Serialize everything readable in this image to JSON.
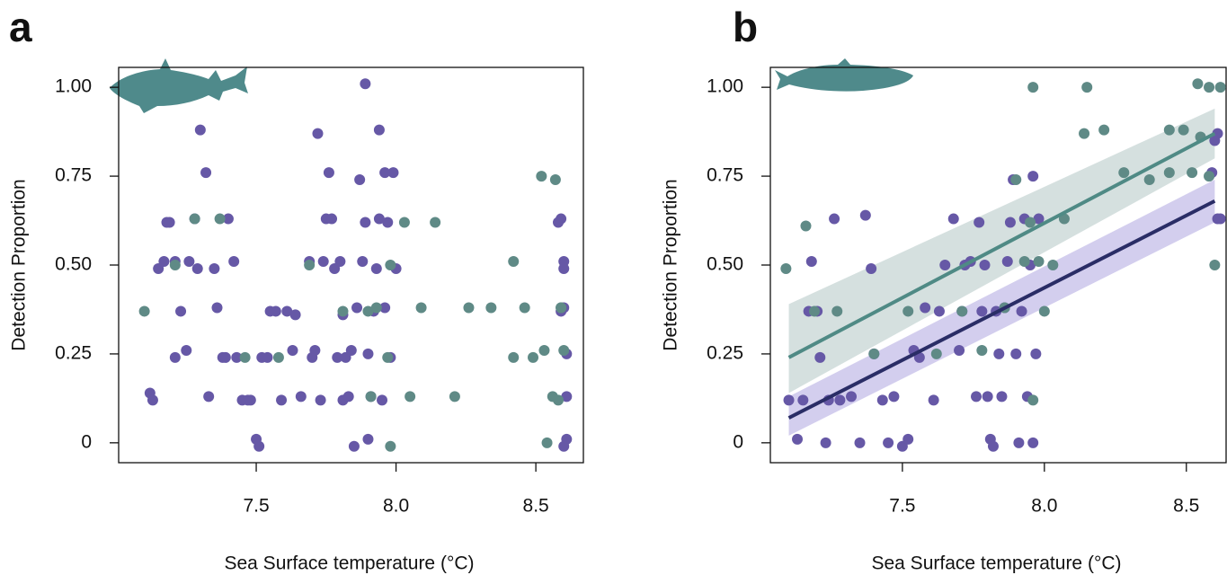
{
  "chart_data": [
    {
      "type": "scatter",
      "title": "a",
      "x_label": "Sea Surface temperature (°C)",
      "y_label": "Detection Proportion",
      "xlim": [
        7.008,
        8.67
      ],
      "ylim": [
        -0.056,
        1.056
      ],
      "xticks": [
        7.5,
        {
          "value": 8,
          "label": "8.0"
        },
        8.5
      ],
      "yticks": [
        0,
        0.25,
        {
          "value": 0.5,
          "label": "0.50"
        },
        0.75,
        {
          "value": 1,
          "label": "1.00"
        }
      ],
      "series": [
        {
          "color": "#6658a6",
          "x": [
            7.12,
            7.13,
            7.15,
            7.17,
            7.18,
            7.19,
            7.21,
            7.21,
            7.23,
            7.25,
            7.26,
            7.28,
            7.29,
            7.3,
            7.32,
            7.33,
            7.35,
            7.36,
            7.38,
            7.39,
            7.4,
            7.42,
            7.43,
            7.45,
            7.47,
            7.48,
            7.5,
            7.51,
            7.52,
            7.54,
            7.55,
            7.57,
            7.59,
            7.61,
            7.63,
            7.64,
            7.66,
            7.69,
            7.7,
            7.71,
            7.72,
            7.73,
            7.74,
            7.75,
            7.76,
            7.77,
            7.78,
            7.79,
            7.8,
            7.81,
            7.81,
            7.82,
            7.83,
            7.84,
            7.85,
            7.86,
            7.87,
            7.88,
            7.89,
            7.89,
            7.9,
            7.9,
            7.91,
            7.92,
            7.93,
            7.94,
            7.94,
            7.95,
            7.96,
            7.96,
            7.97,
            7.98,
            7.99,
            8.0,
            8.59,
            8.6,
            8.6,
            8.61,
            8.61,
            8.61,
            8.6,
            8.58,
            8.6,
            8.59
          ],
          "values": [
            0.14,
            0.12,
            0.49,
            0.51,
            0.62,
            0.62,
            0.24,
            0.51,
            0.37,
            0.26,
            0.51,
            0.63,
            0.49,
            0.88,
            0.76,
            0.13,
            0.49,
            0.38,
            0.24,
            0.24,
            0.63,
            0.51,
            0.24,
            0.12,
            0.12,
            0.12,
            0.01,
            -0.01,
            0.24,
            0.24,
            0.37,
            0.37,
            0.12,
            0.37,
            0.26,
            0.36,
            0.13,
            0.51,
            0.24,
            0.26,
            0.87,
            0.12,
            0.51,
            0.63,
            0.76,
            0.63,
            0.49,
            0.24,
            0.51,
            0.12,
            0.36,
            0.24,
            0.13,
            0.26,
            -0.01,
            0.38,
            0.74,
            0.51,
            0.62,
            1.01,
            0.01,
            0.25,
            0.13,
            0.37,
            0.49,
            0.63,
            0.88,
            0.12,
            0.76,
            0.38,
            0.62,
            0.24,
            0.76,
            0.49,
            0.63,
            0.51,
            0.38,
            0.25,
            0.13,
            0.01,
            -0.01,
            0.62,
            0.49,
            0.37
          ]
        },
        {
          "color": "#5f8a86",
          "x": [
            7.1,
            7.21,
            7.28,
            7.37,
            7.46,
            7.58,
            7.69,
            7.81,
            7.9,
            7.91,
            7.93,
            7.97,
            7.98,
            7.98,
            8.03,
            8.05,
            8.09,
            8.14,
            8.21,
            8.26,
            8.34,
            8.42,
            8.42,
            8.46,
            8.49,
            8.52,
            8.53,
            8.54,
            8.57,
            8.56,
            8.58,
            8.59,
            8.6,
            8.59
          ],
          "values": [
            0.37,
            0.5,
            0.63,
            0.63,
            0.24,
            0.24,
            0.5,
            0.37,
            0.37,
            0.13,
            0.38,
            0.24,
            0.5,
            -0.01,
            0.62,
            0.13,
            0.38,
            0.62,
            0.13,
            0.38,
            0.38,
            0.51,
            0.24,
            0.38,
            0.24,
            0.75,
            0.26,
            0.0,
            0.74,
            0.13,
            0.12,
            0.38,
            0.26,
            0.38
          ]
        }
      ]
    },
    {
      "type": "scatter",
      "title": "b",
      "x_label": "Sea Surface temperature (°C)",
      "y_label": "Detection Proportion",
      "xlim": [
        7.035,
        8.64
      ],
      "ylim": [
        -0.056,
        1.056
      ],
      "xticks": [
        7.5,
        {
          "value": 8,
          "label": "8.0"
        },
        8.5
      ],
      "yticks": [
        0,
        0.25,
        {
          "value": 0.5,
          "label": "0.50"
        },
        0.75,
        {
          "value": 1,
          "label": "1.00"
        }
      ],
      "series": [
        {
          "color": "#6658a6",
          "x": [
            7.1,
            7.13,
            7.15,
            7.17,
            7.18,
            7.2,
            7.21,
            7.23,
            7.24,
            7.26,
            7.28,
            7.32,
            7.35,
            7.37,
            7.39,
            7.4,
            7.43,
            7.45,
            7.47,
            7.5,
            7.52,
            7.54,
            7.56,
            7.58,
            7.61,
            7.63,
            7.65,
            7.68,
            7.7,
            7.71,
            7.72,
            7.74,
            7.76,
            7.77,
            7.78,
            7.79,
            7.8,
            7.81,
            7.82,
            7.83,
            7.84,
            7.85,
            7.86,
            7.87,
            7.88,
            7.89,
            7.9,
            7.91,
            7.92,
            7.93,
            7.94,
            7.95,
            7.96,
            7.97,
            7.98,
            7.96,
            8.59,
            8.61,
            8.6,
            8.62,
            8.61
          ],
          "values": [
            0.12,
            0.01,
            0.12,
            0.37,
            0.51,
            0.37,
            0.24,
            0.0,
            0.12,
            0.63,
            0.12,
            0.13,
            0.0,
            0.64,
            0.49,
            0.25,
            0.12,
            0.0,
            0.13,
            -0.01,
            0.01,
            0.26,
            0.24,
            0.38,
            0.12,
            0.37,
            0.5,
            0.63,
            0.26,
            0.37,
            0.5,
            0.51,
            0.13,
            0.62,
            0.37,
            0.5,
            0.13,
            0.01,
            -0.01,
            0.37,
            0.25,
            0.13,
            0.38,
            0.51,
            0.62,
            0.74,
            0.25,
            0.0,
            0.37,
            0.63,
            0.13,
            0.5,
            0.75,
            0.25,
            0.63,
            0.0,
            0.76,
            0.63,
            0.85,
            0.63,
            0.87
          ]
        },
        {
          "color": "#5f8a86",
          "x": [
            7.09,
            7.16,
            7.19,
            7.27,
            7.4,
            7.52,
            7.62,
            7.71,
            7.78,
            7.86,
            7.9,
            7.93,
            7.95,
            7.96,
            7.98,
            8.0,
            8.03,
            8.07,
            8.14,
            8.21,
            8.28,
            8.37,
            8.44,
            8.44,
            8.49,
            8.52,
            8.55,
            8.58,
            8.6,
            8.54,
            8.58,
            8.62,
            7.96,
            8.15
          ],
          "values": [
            0.49,
            0.61,
            0.37,
            0.37,
            0.25,
            0.37,
            0.25,
            0.37,
            0.26,
            0.38,
            0.74,
            0.51,
            0.62,
            0.12,
            0.51,
            0.37,
            0.5,
            0.63,
            0.87,
            0.88,
            0.76,
            0.74,
            0.76,
            0.88,
            0.88,
            0.76,
            0.86,
            0.75,
            0.5,
            1.01,
            1.0,
            1.0,
            1.0,
            1.0
          ]
        }
      ],
      "fits": [
        {
          "color": "#4f8a85",
          "band_color": "#b9ccca",
          "x": [
            7.1,
            8.6
          ],
          "values": [
            0.24,
            0.87
          ],
          "lower": [
            0.14,
            0.8
          ],
          "upper": [
            0.39,
            0.94
          ]
        },
        {
          "color": "#2a2d66",
          "band_color": "#b6aee2",
          "x": [
            7.1,
            8.6
          ],
          "values": [
            0.07,
            0.68
          ],
          "lower": [
            0.02,
            0.62
          ],
          "upper": [
            0.13,
            0.74
          ]
        }
      ]
    }
  ]
}
